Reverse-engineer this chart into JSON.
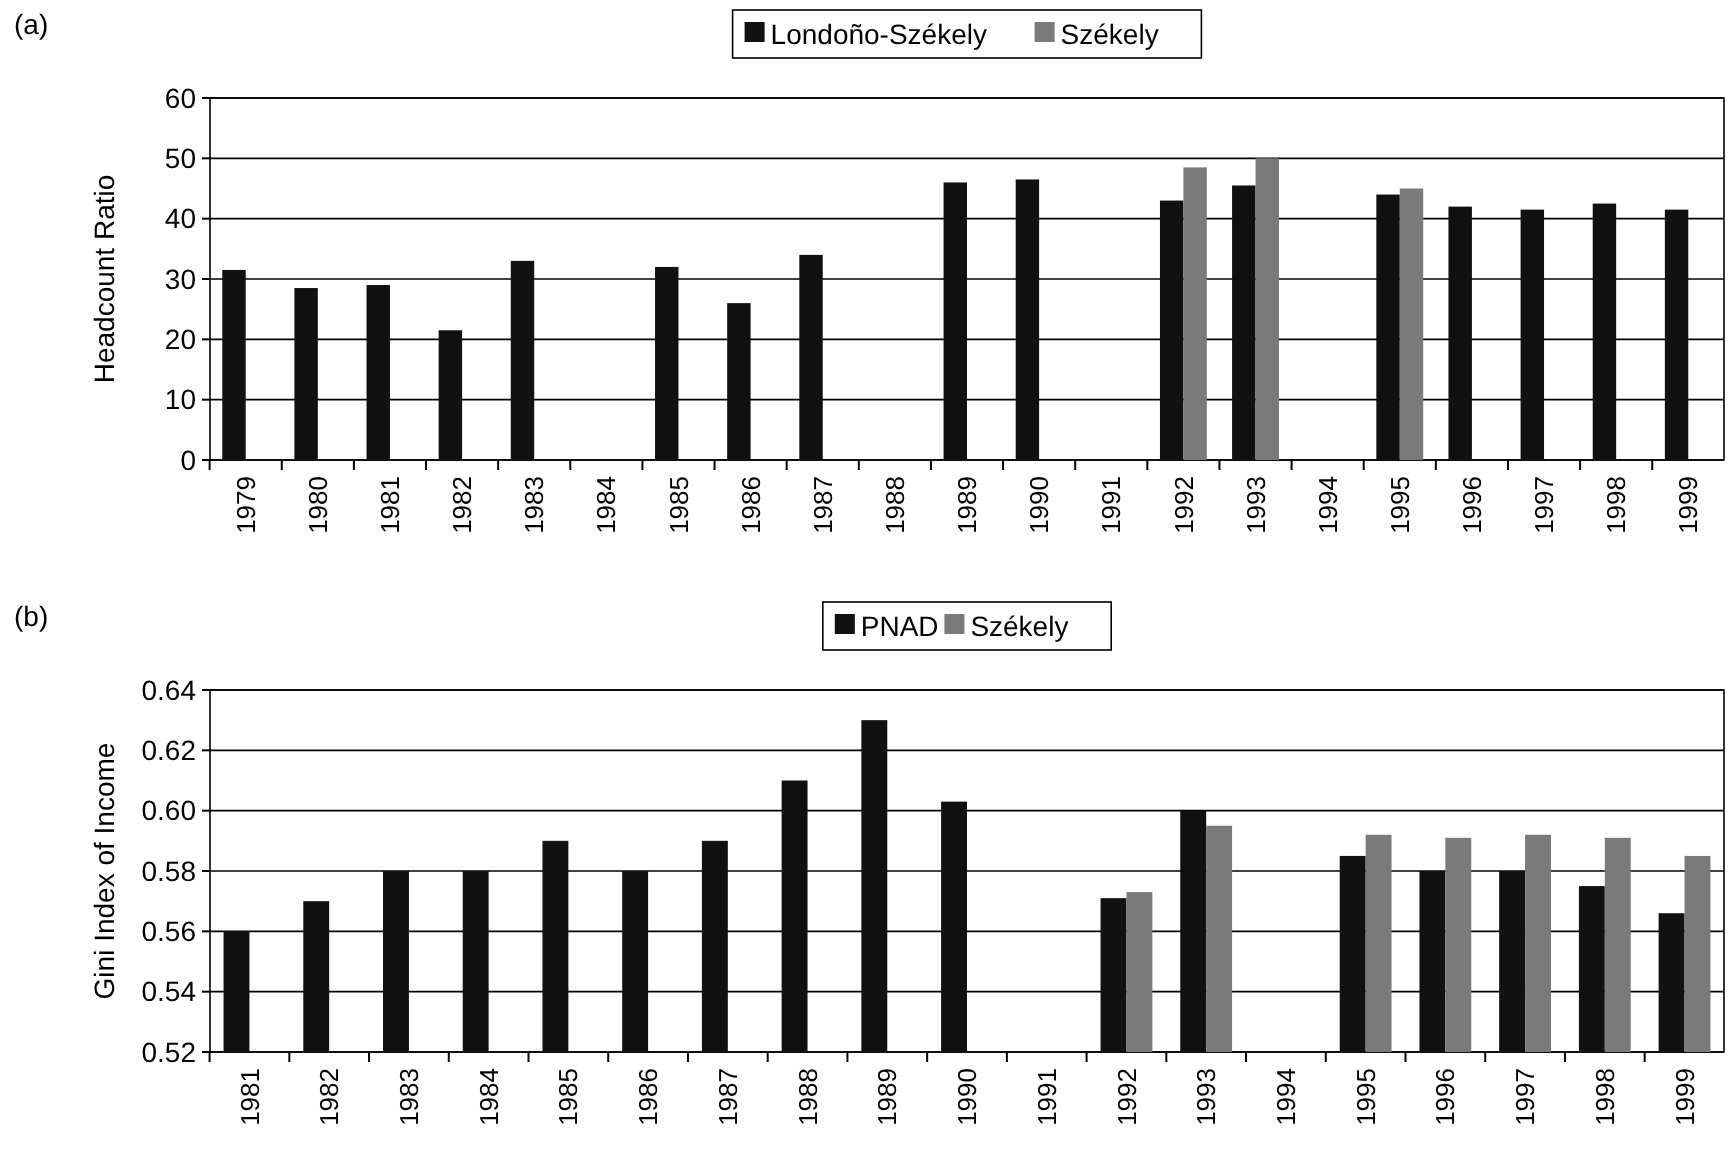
{
  "chart_data": [
    {
      "type": "bar",
      "annotations": [
        "(a)"
      ],
      "ylabel": "Headcount Ratio",
      "categories": [
        "1979",
        "1980",
        "1981",
        "1982",
        "1983",
        "1984",
        "1985",
        "1986",
        "1987",
        "1988",
        "1989",
        "1990",
        "1991",
        "1992",
        "1993",
        "1994",
        "1995",
        "1996",
        "1997",
        "1998",
        "1999"
      ],
      "series": [
        {
          "name": "Londoño-Székely",
          "color": "#111111",
          "values": [
            31.5,
            28.5,
            29,
            21.5,
            33,
            null,
            32,
            26,
            34,
            null,
            46,
            46.5,
            null,
            43,
            45.5,
            null,
            44,
            42,
            41.5,
            42.5,
            41.5
          ]
        },
        {
          "name": "Székely",
          "color": "#7a7a7a",
          "values": [
            null,
            null,
            null,
            null,
            null,
            null,
            null,
            null,
            null,
            null,
            null,
            null,
            null,
            48.5,
            50,
            null,
            45,
            null,
            null,
            null,
            null
          ]
        }
      ],
      "ylim": [
        0,
        60
      ],
      "yticks": [
        0,
        10,
        20,
        30,
        40,
        50,
        60
      ],
      "grid": "y",
      "legend": "top"
    },
    {
      "type": "bar",
      "annotations": [
        "(b)"
      ],
      "ylabel": "Gini Index of Income",
      "categories": [
        "1981",
        "1982",
        "1983",
        "1984",
        "1985",
        "1986",
        "1987",
        "1988",
        "1989",
        "1990",
        "1991",
        "1992",
        "1993",
        "1994",
        "1995",
        "1996",
        "1997",
        "1998",
        "1999"
      ],
      "series": [
        {
          "name": "PNAD",
          "color": "#111111",
          "values": [
            0.56,
            0.57,
            0.58,
            0.58,
            0.59,
            0.58,
            0.59,
            0.61,
            0.63,
            0.603,
            null,
            0.571,
            0.6,
            null,
            0.585,
            0.58,
            0.58,
            0.575,
            0.566
          ]
        },
        {
          "name": "Székely",
          "color": "#7a7a7a",
          "values": [
            null,
            null,
            null,
            null,
            null,
            null,
            null,
            null,
            null,
            null,
            null,
            0.573,
            0.595,
            null,
            0.592,
            0.591,
            0.592,
            0.591,
            0.585
          ]
        }
      ],
      "ylim": [
        0.52,
        0.64
      ],
      "yticks": [
        {
          "value": 0.52,
          "label": "0.52"
        },
        {
          "value": 0.54,
          "label": "0.54"
        },
        {
          "value": 0.56,
          "label": "0.56"
        },
        {
          "value": 0.58,
          "label": "0.58"
        },
        {
          "value": 0.6,
          "label": "0.60"
        },
        {
          "value": 0.62,
          "label": "0.62"
        },
        {
          "value": 0.64,
          "label": "0.64"
        }
      ],
      "grid": "y",
      "legend": "top"
    }
  ]
}
